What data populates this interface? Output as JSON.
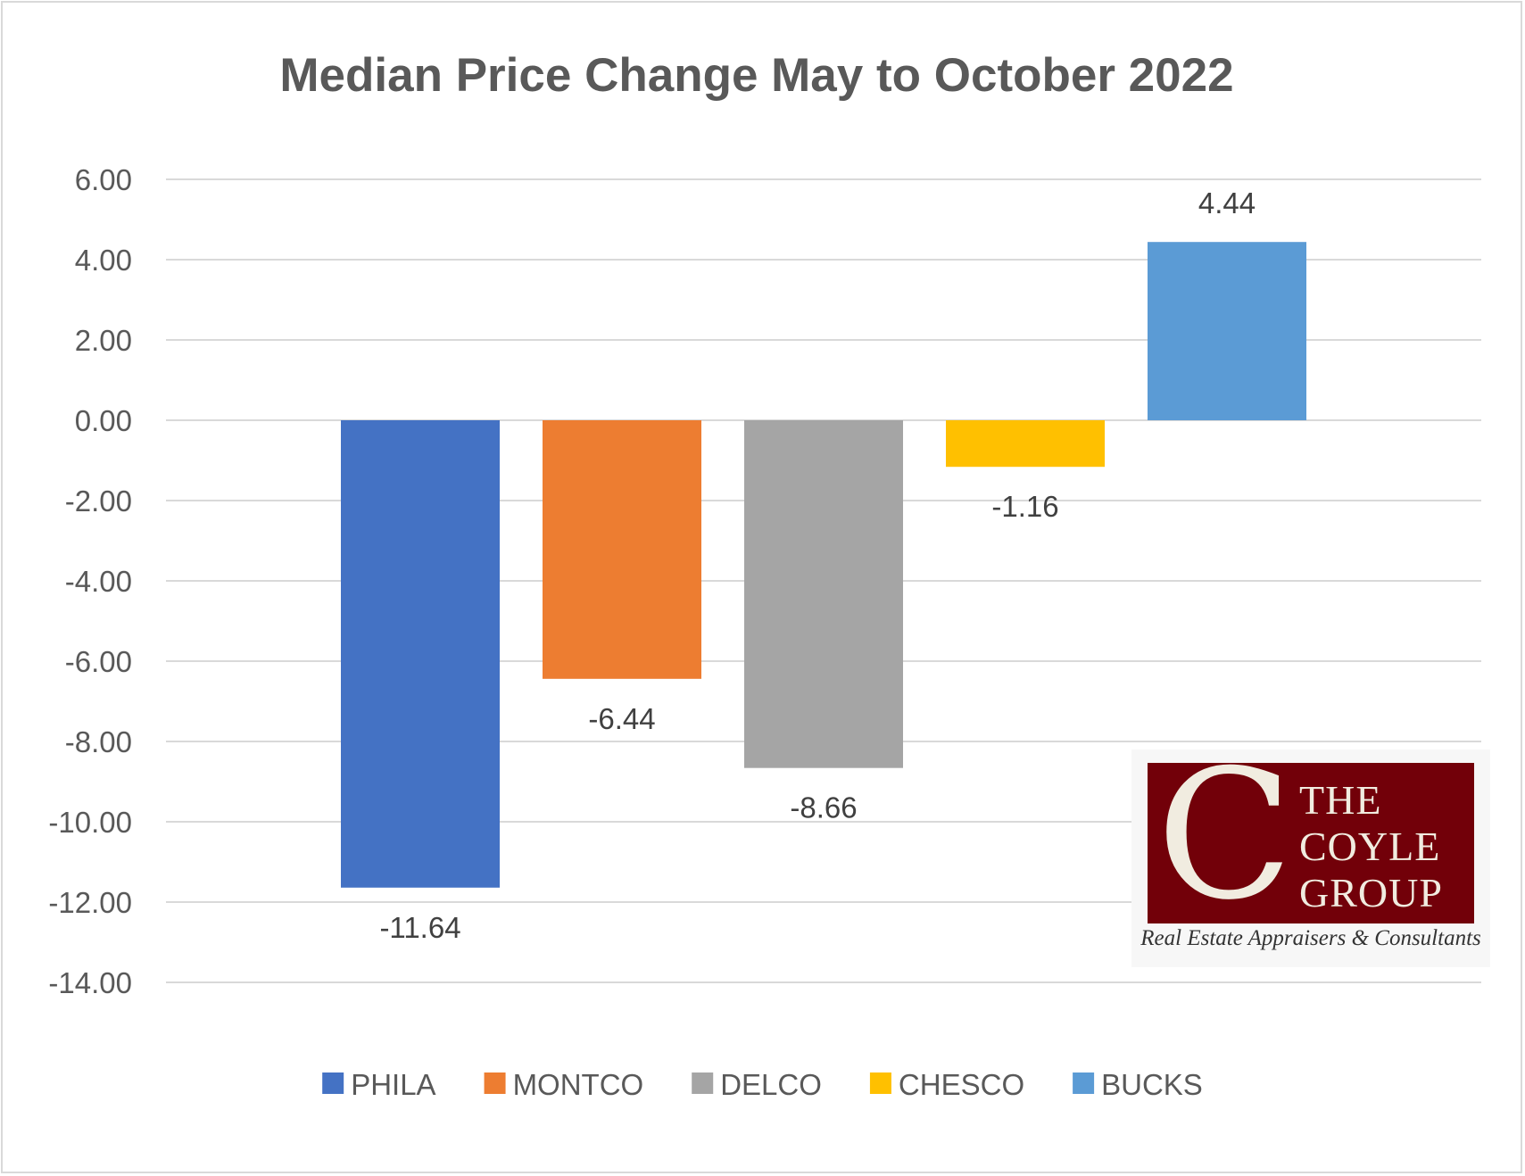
{
  "chart_data": {
    "type": "bar",
    "title": "Median Price Change May to October 2022",
    "categories": [
      "PHILA",
      "MONTCO",
      "DELCO",
      "CHESCO",
      "BUCKS"
    ],
    "values": [
      -11.64,
      -6.44,
      -8.66,
      -1.16,
      4.44
    ],
    "value_labels": [
      "-11.64",
      "-6.44",
      "-8.66",
      "-1.16",
      "4.44"
    ],
    "colors": [
      "#4472C4",
      "#ED7D31",
      "#A5A5A5",
      "#FFC000",
      "#5B9BD5"
    ],
    "ylim": [
      -14,
      6
    ],
    "yticks": [
      6,
      4,
      2,
      0,
      -2,
      -4,
      -6,
      -8,
      -10,
      -12,
      -14
    ],
    "ytick_labels": [
      "6.00",
      "4.00",
      "2.00",
      "0.00",
      "-2.00",
      "-4.00",
      "-6.00",
      "-8.00",
      "-10.00",
      "-12.00",
      "-14.00"
    ],
    "grid": true,
    "legend": "bottom",
    "xlabel": "",
    "ylabel": ""
  },
  "logo": {
    "initial": "C",
    "words": [
      "THE",
      "COYLE",
      "GROUP"
    ],
    "tagline": "Real Estate Appraisers & Consultants",
    "background_color": "#720009"
  }
}
